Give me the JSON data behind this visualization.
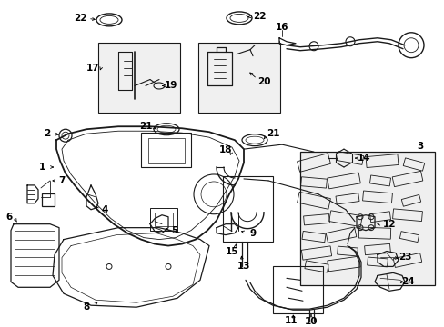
{
  "background_color": "#ffffff",
  "fig_width": 4.89,
  "fig_height": 3.6,
  "dpi": 100,
  "line_color": "#1a1a1a",
  "part_line_color": "#1a1a1a"
}
